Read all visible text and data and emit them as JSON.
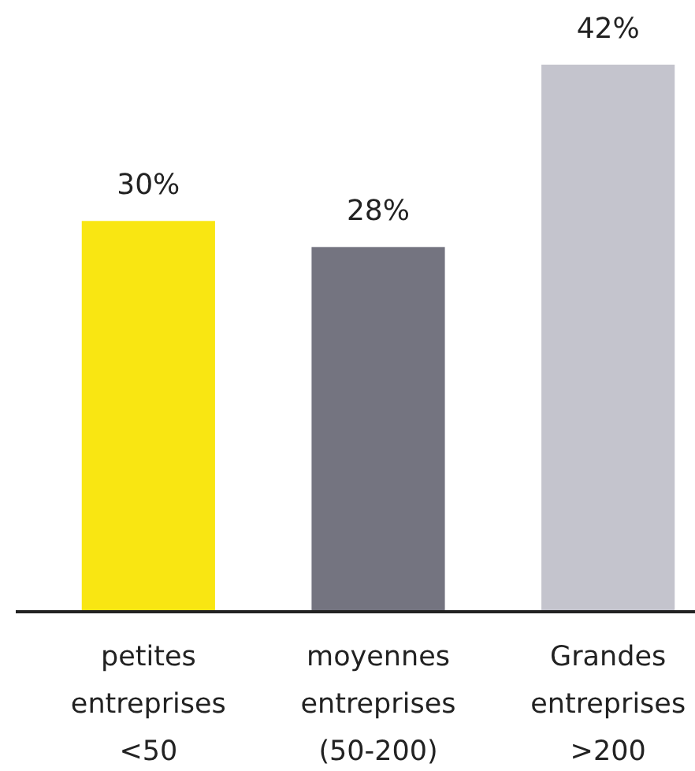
{
  "chart_data": {
    "type": "bar",
    "categories": [
      "petites\nentreprises\n<50",
      "moyennes\nentreprises\n(50-200)",
      "Grandes\nentreprises\n>200"
    ],
    "values": [
      30,
      28,
      42
    ],
    "colors": [
      "#f9e612",
      "#747480",
      "#c4c4cd"
    ],
    "value_labels": [
      "30%",
      "28%",
      "42%"
    ]
  }
}
